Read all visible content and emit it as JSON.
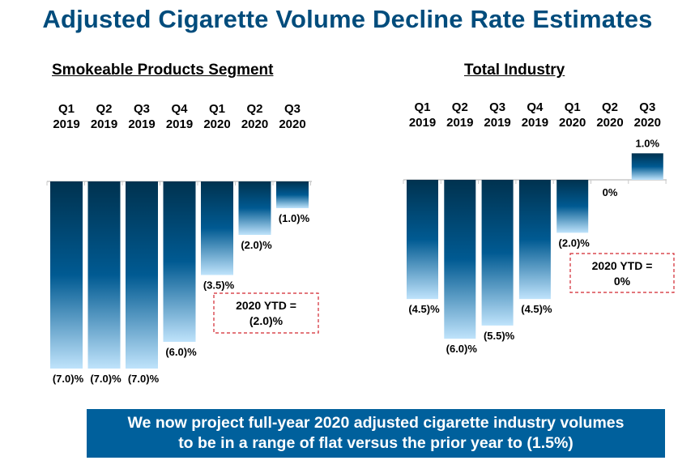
{
  "title": "Adjusted Cigarette Volume Decline Rate Estimates",
  "colors": {
    "title": "#004c7c",
    "bar_top": "#00324f",
    "bar_mid": "#005a92",
    "bar_bottom": "#bfe3fb",
    "ytd_border": "#d2262f",
    "banner_bg": "#00609c",
    "axis": "#c8c8c8"
  },
  "banner": {
    "line1": "We now project full-year 2020 adjusted cigarette industry volumes",
    "line2": "to be in a range of flat versus the prior year to (1.5%)"
  },
  "chart_data": [
    {
      "type": "bar",
      "title": "Smokeable Products Segment",
      "categories": [
        "Q1 2019",
        "Q2 2019",
        "Q3 2019",
        "Q4 2019",
        "Q1 2020",
        "Q2 2020",
        "Q3 2020"
      ],
      "category_lines": [
        [
          "Q1",
          "2019"
        ],
        [
          "Q2",
          "2019"
        ],
        [
          "Q3",
          "2019"
        ],
        [
          "Q4",
          "2019"
        ],
        [
          "Q1",
          "2020"
        ],
        [
          "Q2",
          "2020"
        ],
        [
          "Q3",
          "2020"
        ]
      ],
      "values": [
        -7.0,
        -7.0,
        -7.0,
        -6.0,
        -3.5,
        -2.0,
        -1.0
      ],
      "data_labels": [
        "(7.0)%",
        "(7.0)%",
        "(7.0)%",
        "(6.0)%",
        "(3.5)%",
        "(2.0)%",
        "(1.0)%"
      ],
      "ylim": [
        -7.0,
        0
      ],
      "grid": false,
      "annotation": {
        "line1": "2020 YTD =",
        "line2": "(2.0)%"
      },
      "xlabel": "",
      "ylabel": ""
    },
    {
      "type": "bar",
      "title": "Total Industry",
      "categories": [
        "Q1 2019",
        "Q2 2019",
        "Q3 2019",
        "Q4 2019",
        "Q1 2020",
        "Q2 2020",
        "Q3 2020"
      ],
      "category_lines": [
        [
          "Q1",
          "2019"
        ],
        [
          "Q2",
          "2019"
        ],
        [
          "Q3",
          "2019"
        ],
        [
          "Q4",
          "2019"
        ],
        [
          "Q1",
          "2020"
        ],
        [
          "Q2",
          "2020"
        ],
        [
          "Q3",
          "2020"
        ]
      ],
      "values": [
        -4.5,
        -6.0,
        -5.5,
        -4.5,
        -2.0,
        0.0,
        1.0
      ],
      "data_labels": [
        "(4.5)%",
        "(6.0)%",
        "(5.5)%",
        "(4.5)%",
        "(2.0)%",
        "0%",
        "1.0%"
      ],
      "ylim": [
        -6.0,
        1.0
      ],
      "grid": false,
      "annotation": {
        "line1": "2020 YTD =",
        "line2": "0%"
      },
      "xlabel": "",
      "ylabel": ""
    }
  ]
}
